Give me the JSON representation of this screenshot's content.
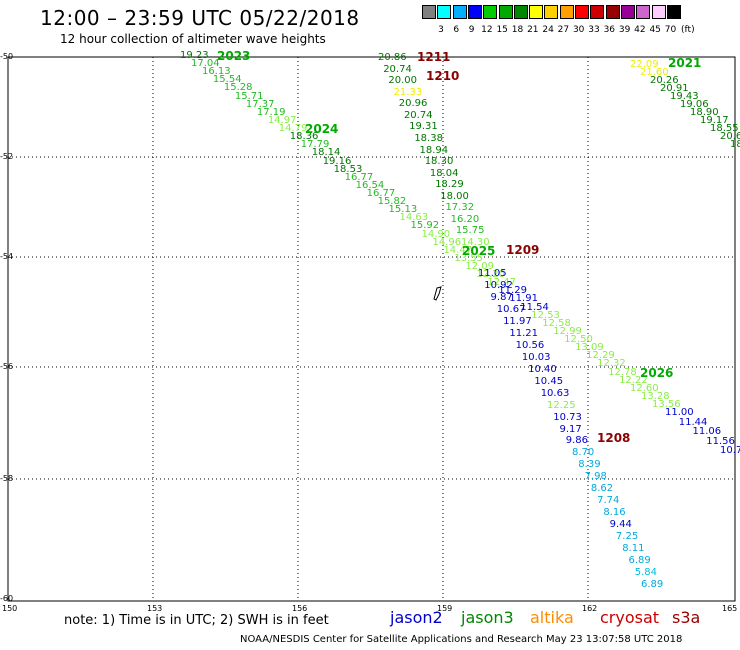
{
  "title": "12:00 – 23:59 UTC 05/22/2018",
  "subtitle": "12 hour collection of altimeter wave heights",
  "legend": {
    "unit": "(ft)",
    "colors": [
      "#808080",
      "#00ffff",
      "#00b0ff",
      "#0000ff",
      "#00cc00",
      "#00aa00",
      "#008800",
      "#ffff00",
      "#ffd000",
      "#ffa000",
      "#ff0000",
      "#cc0000",
      "#990000",
      "#990099",
      "#cc66cc",
      "#ffccff",
      "#000000"
    ],
    "values": [
      "3",
      "6",
      "9",
      "12",
      "15",
      "18",
      "21",
      "24",
      "27",
      "30",
      "33",
      "36",
      "39",
      "42",
      "45",
      "70"
    ]
  },
  "lat_labels": [
    "-50",
    "-52",
    "-54",
    "-56",
    "-58",
    "-60"
  ],
  "lon_labels": [
    "150",
    "153",
    "156",
    "159",
    "162",
    "165"
  ],
  "tracks": [
    {
      "id": "2023",
      "color": "#00aa00"
    },
    {
      "id": "2024",
      "color": "#00aa00"
    },
    {
      "id": "2025",
      "color": "#00aa00"
    },
    {
      "id": "2026",
      "color": "#00aa00"
    },
    {
      "id": "2021",
      "color": "#00aa00"
    },
    {
      "id": "1211",
      "color": "#8b0000"
    },
    {
      "id": "1210",
      "color": "#8b0000"
    },
    {
      "id": "1209",
      "color": "#8b0000"
    },
    {
      "id": "1208",
      "color": "#8b0000"
    }
  ],
  "waves_a": [
    "19.23",
    "17.04",
    "16.13",
    "15.54",
    "15.28",
    "15.71",
    "17.37",
    "17.19",
    "14.97",
    "14.79",
    "18.36",
    "17.79",
    "18.14",
    "19.16",
    "18.53",
    "16.77",
    "16.54",
    "16.77",
    "15.82",
    "15.13",
    "14.63",
    "15.92",
    "14.90",
    "14.96",
    "14.47",
    "13.55",
    "12.09",
    "12.20",
    "12.47",
    "11.29",
    "11.91",
    "11.54",
    "12.53",
    "12.58",
    "12.99",
    "12.50",
    "13.09",
    "12.29",
    "12.32",
    "12.78",
    "12.22",
    "12.60",
    "13.28",
    "13.56"
  ],
  "waves_b": [
    "20.86",
    "20.74",
    "20.00",
    "21.33",
    "20.96",
    "20.74",
    "19.31",
    "18.38",
    "18.94",
    "18.30",
    "18.04",
    "18.29",
    "18.00",
    "17.32",
    "16.20",
    "15.75",
    "14.30"
  ],
  "waves_c": [
    "11.05",
    "10.92",
    "9.87",
    "10.67",
    "11.97",
    "11.21",
    "10.56",
    "10.03",
    "10.40",
    "10.45",
    "10.63",
    "12.25",
    "10.73",
    "9.17",
    "9.86",
    "8.70",
    "8.39",
    "7.98",
    "8.62",
    "7.74",
    "8.16",
    "9.44",
    "7.25",
    "8.11",
    "6.89",
    "5.84",
    "6.89"
  ],
  "waves_d": [
    "22.09",
    "21.60",
    "20.26",
    "20.91",
    "19.43",
    "19.06",
    "18.90",
    "19.17",
    "18.55",
    "20.68",
    "18.1"
  ],
  "waves_e": [
    "11.00",
    "11.44",
    "11.06",
    "11.56",
    "10.7"
  ],
  "note": "note:  1) Time is in UTC;  2) SWH is in feet",
  "satellites": [
    {
      "name": "jason2",
      "color": "#0000cc"
    },
    {
      "name": "jason3",
      "color": "#008800"
    },
    {
      "name": "altika",
      "color": "#ff8c00"
    },
    {
      "name": "cryosat",
      "color": "#cc0000"
    },
    {
      "name": "s3a",
      "color": "#990000"
    }
  ],
  "footer": "NOAA/NESDIS Center for Satellite Applications and Research     May 23 13:07:58 UTC 2018"
}
